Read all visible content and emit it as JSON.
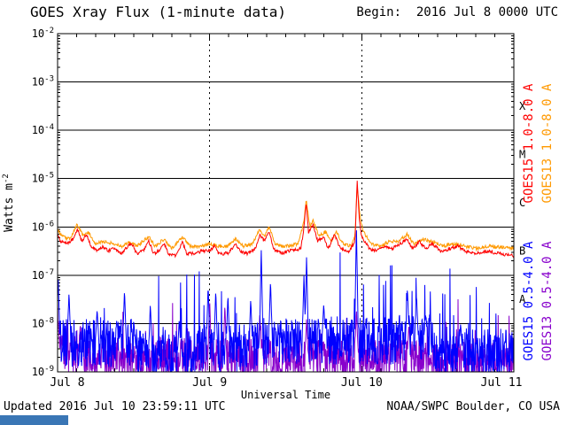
{
  "header": {
    "title": "GOES Xray Flux (1-minute data)",
    "begin": "Begin:  2016 Jul 8 0000 UTC"
  },
  "footer": {
    "updated": "Updated 2016 Jul 10 23:59:11 UTC",
    "credit": "NOAA/SWPC Boulder, CO USA"
  },
  "taskbar_fragment": {
    "color": "#3a76b5"
  },
  "chart_data": {
    "type": "line",
    "title": "GOES Xray Flux (1-minute data)",
    "xlabel": "Universal Time",
    "ylabel": {
      "base": "Watts m",
      "exp": "-2"
    },
    "x_range_days": [
      0,
      3
    ],
    "y_log_range": [
      -9,
      -2
    ],
    "x_ticks": [
      {
        "day": 0,
        "label": "Jul 8",
        "dx": 11
      },
      {
        "day": 1,
        "label": "Jul 9",
        "dx": 0
      },
      {
        "day": 2,
        "label": "Jul 10",
        "dx": 0
      },
      {
        "day": 3,
        "label": "Jul 11",
        "dx": -14
      }
    ],
    "y_ticks": [
      {
        "log": -2,
        "exp": "-2"
      },
      {
        "log": -3,
        "exp": "-3"
      },
      {
        "log": -4,
        "exp": "-4"
      },
      {
        "log": -5,
        "exp": "-5"
      },
      {
        "log": -6,
        "exp": "-6"
      },
      {
        "log": -7,
        "exp": "-7"
      },
      {
        "log": -8,
        "exp": "-8"
      },
      {
        "log": -9,
        "exp": "-9"
      }
    ],
    "grid": {
      "v_dashed_days": [
        1,
        2
      ],
      "minor_tick_days": 0.125
    },
    "flare_classes": [
      {
        "label": "X",
        "log_center": -3.5
      },
      {
        "label": "M",
        "log_center": -4.5
      },
      {
        "label": "C",
        "log_center": -5.5
      },
      {
        "label": "B",
        "log_center": -6.5
      },
      {
        "label": "A",
        "log_center": -7.5
      }
    ],
    "legend": [
      {
        "id": "goes15-long",
        "text": "GOES15 1.0-8.0 A",
        "color": "#ff0000",
        "x": 601,
        "cy": 162
      },
      {
        "id": "goes13-long",
        "text": "GOES13 1.0-8.0 A",
        "color": "#ff9900",
        "x": 622,
        "cy": 162
      },
      {
        "id": "goes15-short",
        "text": "GOES15 0.5-4.0 A",
        "color": "#0000ff",
        "x": 601,
        "cy": 340
      },
      {
        "id": "goes13-short",
        "text": "GOES13 0.5-4.0 A",
        "color": "#8800cc",
        "x": 622,
        "cy": 340
      }
    ],
    "series": [
      {
        "id": "goes13-short",
        "name": "GOES13 0.5-4.0 A",
        "color": "#8800cc",
        "seed": 91,
        "samples": 1250,
        "jitter": 0.42,
        "spike_prob": 0.09,
        "spike_amp": 1.0,
        "anchors": [
          [
            0.0,
            -8.6
          ],
          [
            0.5,
            -8.75
          ],
          [
            1.0,
            -8.7
          ],
          [
            1.5,
            -8.75
          ],
          [
            2.0,
            -8.7
          ],
          [
            2.5,
            -8.8
          ],
          [
            3.0,
            -8.8
          ]
        ],
        "spikes": [
          [
            0.004,
            -7.9
          ],
          [
            0.15,
            -8.0
          ],
          [
            0.3,
            -8.1
          ],
          [
            1.0,
            -7.5
          ],
          [
            1.1,
            -7.6
          ],
          [
            1.33,
            -7.8
          ],
          [
            1.637,
            -7.9
          ],
          [
            1.965,
            -7.7
          ],
          [
            2.31,
            -8.0
          ]
        ]
      },
      {
        "id": "goes15-short",
        "name": "GOES15 0.5-4.0 A",
        "color": "#0000ff",
        "seed": 37,
        "samples": 1250,
        "jitter": 0.5,
        "spike_prob": 0.11,
        "spike_amp": 1.5,
        "anchors": [
          [
            0.0,
            -8.4
          ],
          [
            0.5,
            -8.4
          ],
          [
            0.55,
            -8.65
          ],
          [
            0.9,
            -8.65
          ],
          [
            0.95,
            -8.5
          ],
          [
            1.3,
            -8.5
          ],
          [
            1.35,
            -8.35
          ],
          [
            2.2,
            -8.35
          ],
          [
            2.25,
            -8.3
          ],
          [
            2.45,
            -8.3
          ],
          [
            2.5,
            -8.6
          ],
          [
            3.0,
            -8.6
          ]
        ],
        "spikes": [
          [
            0.004,
            -7.0
          ],
          [
            0.075,
            -7.35
          ],
          [
            0.26,
            -7.7
          ],
          [
            0.44,
            -7.3
          ],
          [
            0.61,
            -7.6
          ],
          [
            0.8,
            -7.9
          ],
          [
            0.99,
            -7.2
          ],
          [
            1.04,
            -7.3
          ],
          [
            1.12,
            -7.4
          ],
          [
            1.27,
            -7.5
          ],
          [
            1.339,
            -6.45
          ],
          [
            1.4,
            -7.1
          ],
          [
            1.62,
            -7.0
          ],
          [
            1.637,
            -6.6
          ],
          [
            1.75,
            -7.6
          ],
          [
            1.965,
            -5.95
          ],
          [
            2.3,
            -7.25
          ],
          [
            2.36,
            -7.4
          ],
          [
            2.42,
            -7.8
          ],
          [
            2.65,
            -8.0
          ]
        ]
      },
      {
        "id": "goes13-long",
        "name": "GOES13 1.0-8.0 A",
        "color": "#ff9900",
        "seed": 53,
        "samples": 900,
        "jitter": 0.035,
        "spike_prob": 0,
        "spike_amp": 0,
        "anchors": [
          [
            0.0,
            -6.05
          ],
          [
            0.03,
            -6.2
          ],
          [
            0.08,
            -6.25
          ],
          [
            0.13,
            -5.95
          ],
          [
            0.17,
            -6.2
          ],
          [
            0.2,
            -6.1
          ],
          [
            0.25,
            -6.35
          ],
          [
            0.31,
            -6.3
          ],
          [
            0.37,
            -6.35
          ],
          [
            0.43,
            -6.4
          ],
          [
            0.47,
            -6.3
          ],
          [
            0.52,
            -6.4
          ],
          [
            0.6,
            -6.2
          ],
          [
            0.64,
            -6.4
          ],
          [
            0.7,
            -6.25
          ],
          [
            0.75,
            -6.45
          ],
          [
            0.82,
            -6.2
          ],
          [
            0.87,
            -6.4
          ],
          [
            0.95,
            -6.4
          ],
          [
            1.0,
            -6.35
          ],
          [
            1.05,
            -6.4
          ],
          [
            1.12,
            -6.4
          ],
          [
            1.17,
            -6.25
          ],
          [
            1.22,
            -6.4
          ],
          [
            1.28,
            -6.35
          ],
          [
            1.33,
            -6.05
          ],
          [
            1.36,
            -6.2
          ],
          [
            1.39,
            -6.0
          ],
          [
            1.43,
            -6.35
          ],
          [
            1.5,
            -6.4
          ],
          [
            1.58,
            -6.35
          ],
          [
            1.62,
            -5.9
          ],
          [
            1.635,
            -5.45
          ],
          [
            1.66,
            -6.0
          ],
          [
            1.68,
            -5.85
          ],
          [
            1.72,
            -6.2
          ],
          [
            1.76,
            -6.1
          ],
          [
            1.8,
            -6.3
          ],
          [
            1.83,
            -6.1
          ],
          [
            1.88,
            -6.35
          ],
          [
            1.93,
            -6.4
          ],
          [
            1.955,
            -6.2
          ],
          [
            1.97,
            -5.15
          ],
          [
            1.99,
            -5.8
          ],
          [
            2.01,
            -6.1
          ],
          [
            2.06,
            -6.35
          ],
          [
            2.12,
            -6.4
          ],
          [
            2.18,
            -6.3
          ],
          [
            2.24,
            -6.3
          ],
          [
            2.3,
            -6.15
          ],
          [
            2.34,
            -6.35
          ],
          [
            2.4,
            -6.25
          ],
          [
            2.46,
            -6.3
          ],
          [
            2.53,
            -6.4
          ],
          [
            2.6,
            -6.35
          ],
          [
            2.68,
            -6.4
          ],
          [
            2.76,
            -6.45
          ],
          [
            2.85,
            -6.4
          ],
          [
            3.0,
            -6.45
          ]
        ],
        "spikes": []
      },
      {
        "id": "goes15-long",
        "name": "GOES15 1.0-8.0 A",
        "color": "#ff0000",
        "seed": 71,
        "samples": 900,
        "jitter": 0.035,
        "spike_prob": 0,
        "spike_amp": 0,
        "anchors": [
          [
            0.0,
            -6.15
          ],
          [
            0.02,
            -6.3
          ],
          [
            0.06,
            -6.35
          ],
          [
            0.1,
            -6.25
          ],
          [
            0.13,
            -6.05
          ],
          [
            0.16,
            -6.3
          ],
          [
            0.19,
            -6.15
          ],
          [
            0.22,
            -6.4
          ],
          [
            0.26,
            -6.5
          ],
          [
            0.3,
            -6.4
          ],
          [
            0.33,
            -6.5
          ],
          [
            0.37,
            -6.45
          ],
          [
            0.42,
            -6.55
          ],
          [
            0.46,
            -6.4
          ],
          [
            0.49,
            -6.35
          ],
          [
            0.52,
            -6.55
          ],
          [
            0.56,
            -6.5
          ],
          [
            0.6,
            -6.3
          ],
          [
            0.63,
            -6.55
          ],
          [
            0.67,
            -6.5
          ],
          [
            0.7,
            -6.35
          ],
          [
            0.73,
            -6.55
          ],
          [
            0.78,
            -6.6
          ],
          [
            0.82,
            -6.3
          ],
          [
            0.85,
            -6.55
          ],
          [
            0.9,
            -6.55
          ],
          [
            0.95,
            -6.5
          ],
          [
            1.0,
            -6.5
          ],
          [
            1.03,
            -6.4
          ],
          [
            1.06,
            -6.55
          ],
          [
            1.12,
            -6.55
          ],
          [
            1.17,
            -6.35
          ],
          [
            1.2,
            -6.5
          ],
          [
            1.25,
            -6.55
          ],
          [
            1.3,
            -6.45
          ],
          [
            1.33,
            -6.15
          ],
          [
            1.36,
            -6.3
          ],
          [
            1.39,
            -6.1
          ],
          [
            1.42,
            -6.45
          ],
          [
            1.47,
            -6.55
          ],
          [
            1.52,
            -6.5
          ],
          [
            1.6,
            -6.45
          ],
          [
            1.62,
            -6.0
          ],
          [
            1.635,
            -5.5
          ],
          [
            1.65,
            -6.1
          ],
          [
            1.68,
            -5.95
          ],
          [
            1.71,
            -6.3
          ],
          [
            1.75,
            -6.2
          ],
          [
            1.78,
            -6.45
          ],
          [
            1.82,
            -6.15
          ],
          [
            1.86,
            -6.45
          ],
          [
            1.92,
            -6.5
          ],
          [
            1.955,
            -6.3
          ],
          [
            1.97,
            -5.05
          ],
          [
            1.985,
            -5.9
          ],
          [
            2.0,
            -6.2
          ],
          [
            2.05,
            -6.45
          ],
          [
            2.1,
            -6.5
          ],
          [
            2.15,
            -6.4
          ],
          [
            2.2,
            -6.45
          ],
          [
            2.25,
            -6.35
          ],
          [
            2.3,
            -6.25
          ],
          [
            2.33,
            -6.45
          ],
          [
            2.38,
            -6.3
          ],
          [
            2.42,
            -6.45
          ],
          [
            2.46,
            -6.35
          ],
          [
            2.52,
            -6.5
          ],
          [
            2.58,
            -6.45
          ],
          [
            2.63,
            -6.4
          ],
          [
            2.68,
            -6.5
          ],
          [
            2.75,
            -6.55
          ],
          [
            2.82,
            -6.5
          ],
          [
            2.9,
            -6.55
          ],
          [
            3.0,
            -6.6
          ]
        ],
        "spikes": []
      }
    ]
  }
}
